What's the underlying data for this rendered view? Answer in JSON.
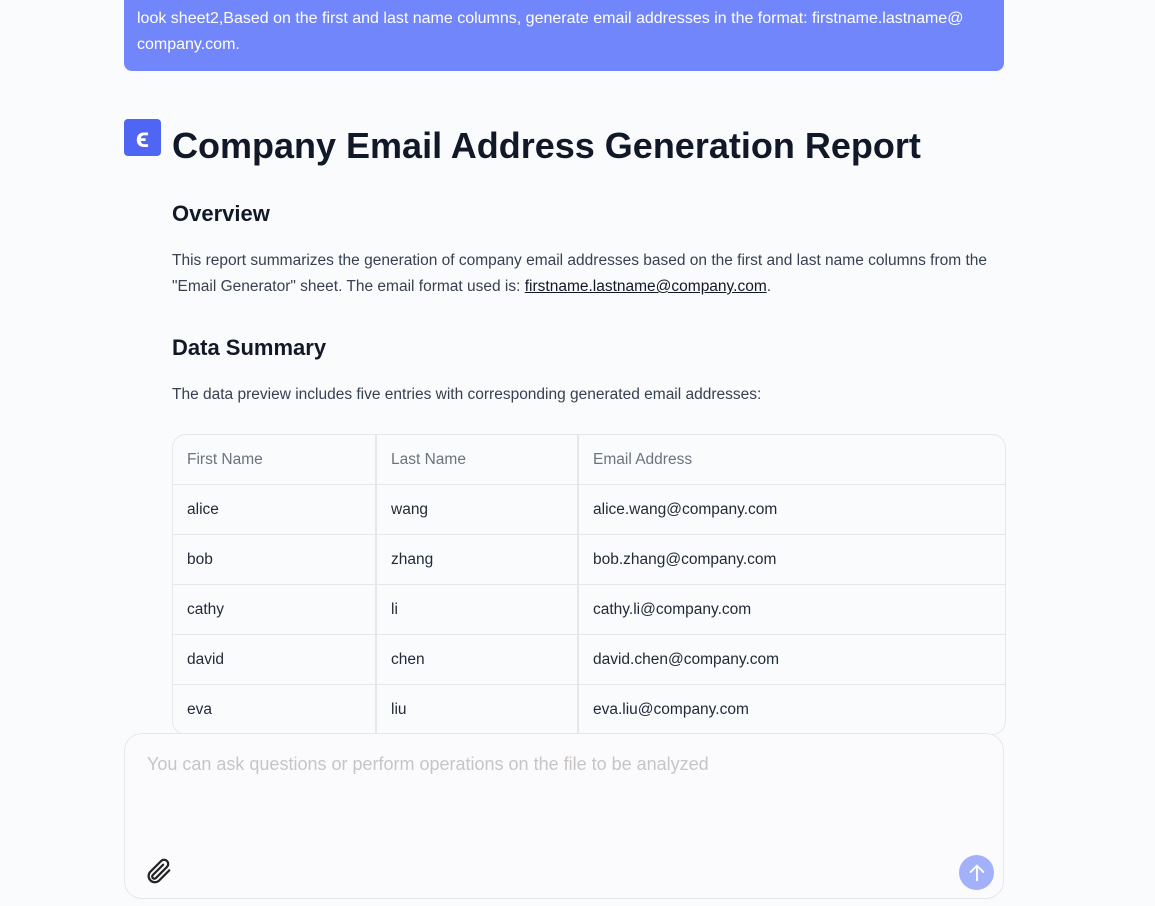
{
  "user_message": "look sheet2,Based on the first and last name columns, generate email addresses in the format: firstname.lastname@ company.com.",
  "logo_letter": "ϵ",
  "report": {
    "title": "Company Email Address Generation Report",
    "overview_heading": "Overview",
    "overview_text": "This report summarizes the generation of company email addresses based on the first and last name columns from the \"Email Generator\" sheet. The email format used is: ",
    "overview_link": "firstname.lastname@company.com",
    "overview_end": ".",
    "summary_heading": "Data Summary",
    "summary_text": "The data preview includes five entries with corresponding generated email addresses:",
    "table": {
      "headers": [
        "First Name",
        "Last Name",
        "Email Address"
      ],
      "rows": [
        [
          "alice",
          "wang",
          "alice.wang@company.com"
        ],
        [
          "bob",
          "zhang",
          "bob.zhang@company.com"
        ],
        [
          "cathy",
          "li",
          "cathy.li@company.com"
        ],
        [
          "david",
          "chen",
          "david.chen@company.com"
        ],
        [
          "eva",
          "liu",
          "eva.liu@company.com"
        ]
      ]
    }
  },
  "composer": {
    "placeholder": "You can ask questions or perform operations on the file to be analyzed",
    "attach_icon": "paperclip-icon",
    "send_icon": "arrow-up-icon"
  },
  "colors": {
    "user_bubble": "#7286fb",
    "accent": "#4f66f5",
    "send_button": "#a3b1fb"
  }
}
